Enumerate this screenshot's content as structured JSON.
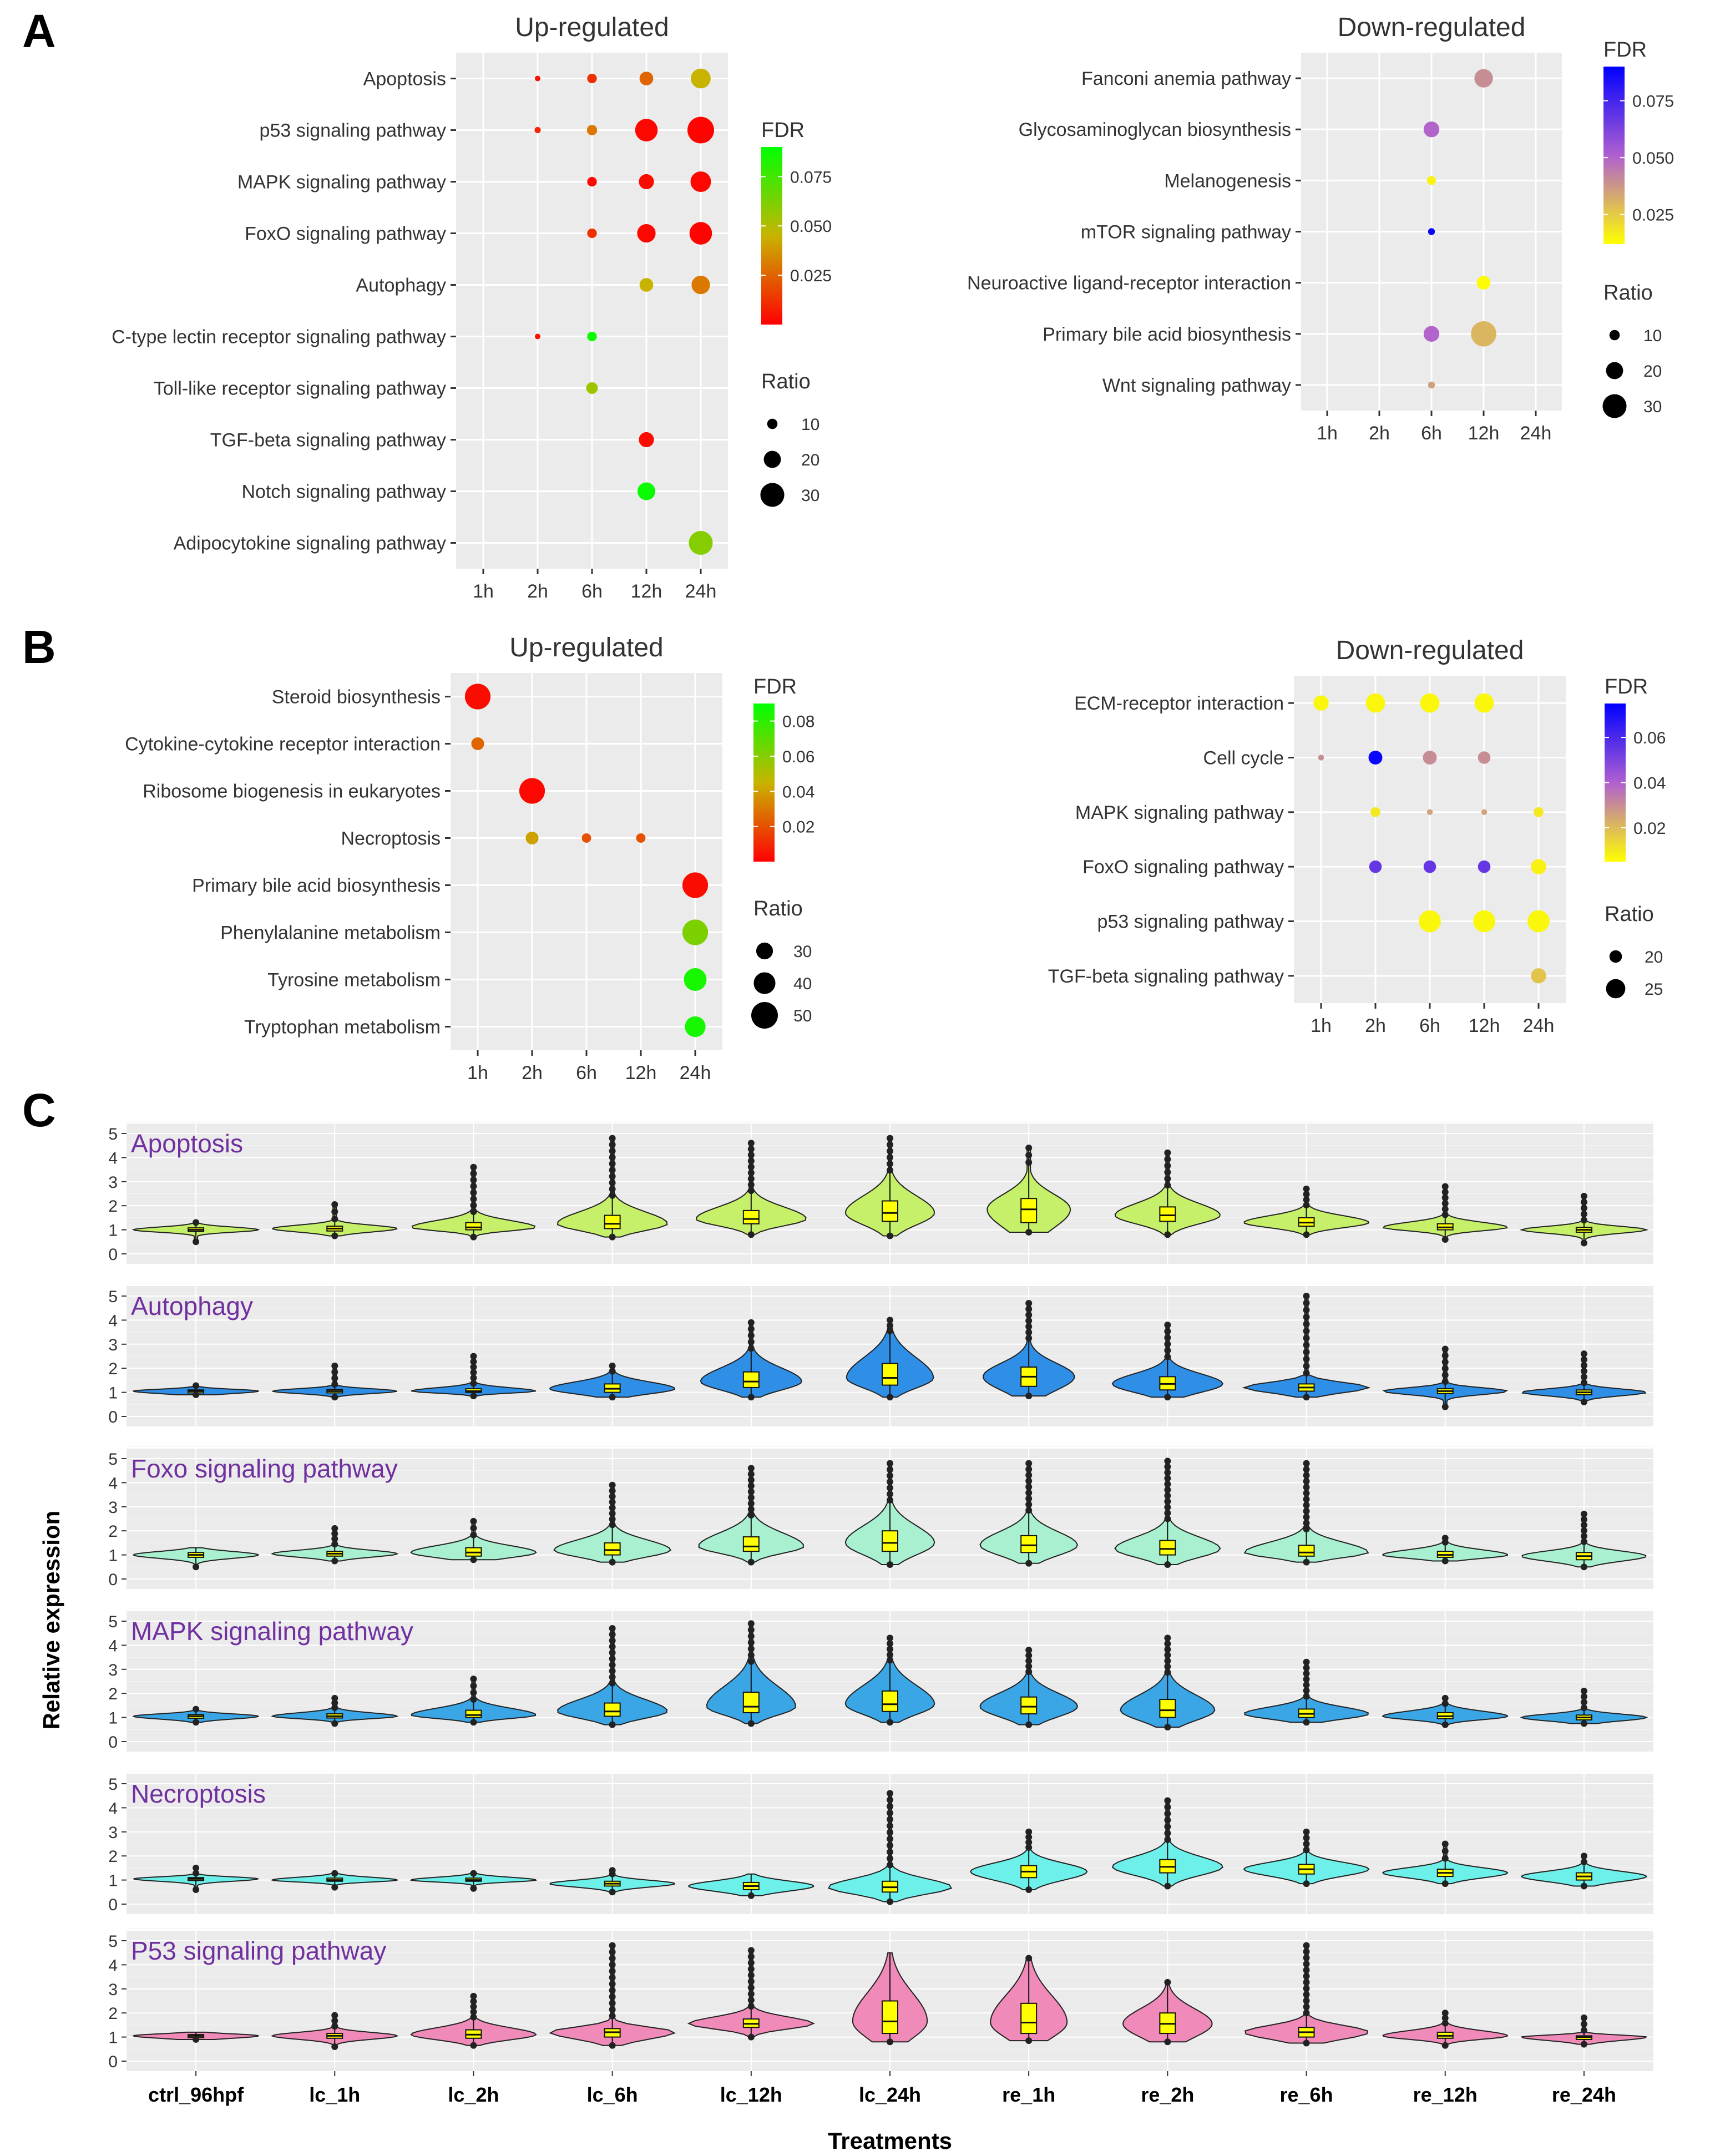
{
  "panel_labels": {
    "a": "A",
    "b": "B",
    "c": "C"
  },
  "colors": {
    "panel_bg": "#ebebeb",
    "grid": "#ffffff",
    "text": "#333333",
    "fdr_up_high": "#00ff00",
    "fdr_up_mid": "#c8b400",
    "fdr_up_low": "#ff0000",
    "fdr_down_high": "#0000ff",
    "fdr_down_mid": "#b060d0",
    "fdr_down_low": "#ffff00",
    "violin_apoptosis": "#c6ef6a",
    "violin_autophagy": "#2f8fe6",
    "violin_foxo": "#a8f0d0",
    "violin_mapk": "#3aa6e6",
    "violin_necroptosis": "#6ef0ea",
    "violin_p53": "#f08ab8",
    "box_fill": "#ffff00"
  },
  "chart_data": [
    {
      "id": "A-up",
      "type": "scatter",
      "title": "Up-regulated",
      "x_categories": [
        "1h",
        "2h",
        "6h",
        "12h",
        "24h"
      ],
      "y_categories": [
        "Apoptosis",
        "p53 signaling pathway",
        "MAPK signaling pathway",
        "FoxO signaling pathway",
        "Autophagy",
        "C-type lectin receptor signaling pathway",
        "Toll-like receptor signaling pathway",
        "TGF-beta signaling pathway",
        "Notch signaling pathway",
        "Adipocytokine signaling pathway"
      ],
      "color_legend": {
        "title": "FDR",
        "ticks": [
          "0.075",
          "0.050",
          "0.025"
        ],
        "tick_values": [
          0.075,
          0.05,
          0.025
        ],
        "range": [
          0.0,
          0.09
        ]
      },
      "size_legend": {
        "title": "Ratio",
        "ticks": [
          "10",
          "20",
          "30"
        ],
        "tick_values": [
          10,
          20,
          30
        ]
      },
      "points": [
        {
          "x": "2h",
          "y": "Apoptosis",
          "ratio": 3,
          "fdr": 0.004
        },
        {
          "x": "6h",
          "y": "Apoptosis",
          "ratio": 9,
          "fdr": 0.012
        },
        {
          "x": "12h",
          "y": "Apoptosis",
          "ratio": 15,
          "fdr": 0.025
        },
        {
          "x": "24h",
          "y": "Apoptosis",
          "ratio": 24,
          "fdr": 0.045
        },
        {
          "x": "2h",
          "y": "p53 signaling pathway",
          "ratio": 4,
          "fdr": 0.01
        },
        {
          "x": "6h",
          "y": "p53 signaling pathway",
          "ratio": 10,
          "fdr": 0.03
        },
        {
          "x": "12h",
          "y": "p53 signaling pathway",
          "ratio": 28,
          "fdr": 0.002
        },
        {
          "x": "24h",
          "y": "p53 signaling pathway",
          "ratio": 34,
          "fdr": 0.001
        },
        {
          "x": "6h",
          "y": "MAPK signaling pathway",
          "ratio": 9,
          "fdr": 0.003
        },
        {
          "x": "12h",
          "y": "MAPK signaling pathway",
          "ratio": 17,
          "fdr": 0.003
        },
        {
          "x": "24h",
          "y": "MAPK signaling pathway",
          "ratio": 25,
          "fdr": 0.002
        },
        {
          "x": "6h",
          "y": "FoxO signaling pathway",
          "ratio": 9,
          "fdr": 0.012
        },
        {
          "x": "12h",
          "y": "FoxO signaling pathway",
          "ratio": 22,
          "fdr": 0.002
        },
        {
          "x": "24h",
          "y": "FoxO signaling pathway",
          "ratio": 28,
          "fdr": 0.001
        },
        {
          "x": "12h",
          "y": "Autophagy",
          "ratio": 15,
          "fdr": 0.045
        },
        {
          "x": "24h",
          "y": "Autophagy",
          "ratio": 22,
          "fdr": 0.03
        },
        {
          "x": "2h",
          "y": "C-type lectin receptor signaling pathway",
          "ratio": 3,
          "fdr": 0.004
        },
        {
          "x": "6h",
          "y": "C-type lectin receptor signaling pathway",
          "ratio": 9,
          "fdr": 0.088
        },
        {
          "x": "6h",
          "y": "Toll-like receptor signaling pathway",
          "ratio": 12,
          "fdr": 0.055
        },
        {
          "x": "12h",
          "y": "TGF-beta signaling pathway",
          "ratio": 17,
          "fdr": 0.003
        },
        {
          "x": "12h",
          "y": "Notch signaling pathway",
          "ratio": 21,
          "fdr": 0.088
        },
        {
          "x": "24h",
          "y": "Adipocytokine signaling pathway",
          "ratio": 30,
          "fdr": 0.06
        }
      ]
    },
    {
      "id": "A-down",
      "type": "scatter",
      "title": "Down-regulated",
      "x_categories": [
        "1h",
        "2h",
        "6h",
        "12h",
        "24h"
      ],
      "y_categories": [
        "Fanconi anemia pathway",
        "Glycosaminoglycan biosynthesis",
        "Melanogenesis",
        "mTOR signaling pathway",
        "Neuroactive ligand-receptor interaction",
        "Primary bile acid biosynthesis",
        "Wnt signaling pathway"
      ],
      "color_legend": {
        "title": "FDR",
        "ticks": [
          "0.075",
          "0.050",
          "0.025"
        ],
        "tick_values": [
          0.075,
          0.05,
          0.025
        ],
        "range": [
          0.012,
          0.09
        ]
      },
      "size_legend": {
        "title": "Ratio",
        "ticks": [
          "10",
          "20",
          "30"
        ],
        "tick_values": [
          10,
          20,
          30
        ]
      },
      "points": [
        {
          "x": "12h",
          "y": "Fanconi anemia pathway",
          "ratio": 22,
          "fdr": 0.04
        },
        {
          "x": "6h",
          "y": "Glycosaminoglycan biosynthesis",
          "ratio": 18,
          "fdr": 0.05
        },
        {
          "x": "6h",
          "y": "Melanogenesis",
          "ratio": 8,
          "fdr": 0.015
        },
        {
          "x": "6h",
          "y": "mTOR signaling pathway",
          "ratio": 5,
          "fdr": 0.088
        },
        {
          "x": "12h",
          "y": "Neuroactive ligand-receptor interaction",
          "ratio": 15,
          "fdr": 0.013
        },
        {
          "x": "6h",
          "y": "Primary bile acid biosynthesis",
          "ratio": 18,
          "fdr": 0.05
        },
        {
          "x": "12h",
          "y": "Primary bile acid biosynthesis",
          "ratio": 32,
          "fdr": 0.03
        },
        {
          "x": "6h",
          "y": "Wnt signaling pathway",
          "ratio": 5,
          "fdr": 0.035
        }
      ]
    },
    {
      "id": "B-up",
      "type": "scatter",
      "title": "Up-regulated",
      "x_categories": [
        "1h",
        "2h",
        "6h",
        "12h",
        "24h"
      ],
      "y_categories": [
        "Steroid biosynthesis",
        "Cytokine-cytokine receptor interaction",
        "Ribosome biogenesis in eukaryotes",
        "Necroptosis",
        "Primary bile acid biosynthesis",
        "Phenylalanine metabolism",
        "Tyrosine metabolism",
        "Tryptophan metabolism"
      ],
      "color_legend": {
        "title": "FDR",
        "ticks": [
          "0.08",
          "0.06",
          "0.04",
          "0.02"
        ],
        "tick_values": [
          0.08,
          0.06,
          0.04,
          0.02
        ],
        "range": [
          0.0,
          0.09
        ]
      },
      "size_legend": {
        "title": "Ratio",
        "ticks": [
          "30",
          "40",
          "50"
        ],
        "tick_values": [
          30,
          40,
          50
        ]
      },
      "points": [
        {
          "x": "1h",
          "y": "Steroid biosynthesis",
          "ratio": 48,
          "fdr": 0.003
        },
        {
          "x": "1h",
          "y": "Cytokine-cytokine receptor interaction",
          "ratio": 22,
          "fdr": 0.025
        },
        {
          "x": "2h",
          "y": "Ribosome biogenesis in eukaryotes",
          "ratio": 48,
          "fdr": 0.002
        },
        {
          "x": "2h",
          "y": "Necroptosis",
          "ratio": 22,
          "fdr": 0.04
        },
        {
          "x": "6h",
          "y": "Necroptosis",
          "ratio": 15,
          "fdr": 0.02
        },
        {
          "x": "12h",
          "y": "Necroptosis",
          "ratio": 15,
          "fdr": 0.02
        },
        {
          "x": "24h",
          "y": "Primary bile acid biosynthesis",
          "ratio": 48,
          "fdr": 0.003
        },
        {
          "x": "24h",
          "y": "Phenylalanine metabolism",
          "ratio": 48,
          "fdr": 0.062
        },
        {
          "x": "24h",
          "y": "Tyrosine metabolism",
          "ratio": 42,
          "fdr": 0.085
        },
        {
          "x": "24h",
          "y": "Tryptophan metabolism",
          "ratio": 38,
          "fdr": 0.085
        }
      ]
    },
    {
      "id": "B-down",
      "type": "scatter",
      "title": "Down-regulated",
      "x_categories": [
        "1h",
        "2h",
        "6h",
        "12h",
        "24h"
      ],
      "y_categories": [
        "ECM-receptor interaction",
        "Cell cycle",
        "MAPK signaling pathway",
        "FoxO signaling pathway",
        "p53 signaling pathway",
        "TGF-beta signaling pathway"
      ],
      "color_legend": {
        "title": "FDR",
        "ticks": [
          "0.06",
          "0.04",
          "0.02"
        ],
        "tick_values": [
          0.06,
          0.04,
          0.02
        ],
        "range": [
          0.005,
          0.075
        ]
      },
      "size_legend": {
        "title": "Ratio",
        "ticks": [
          "20",
          "25"
        ],
        "tick_values": [
          20,
          25
        ]
      },
      "points": [
        {
          "x": "1h",
          "y": "ECM-receptor interaction",
          "ratio": 22,
          "fdr": 0.007
        },
        {
          "x": "2h",
          "y": "ECM-receptor interaction",
          "ratio": 25,
          "fdr": 0.007
        },
        {
          "x": "6h",
          "y": "ECM-receptor interaction",
          "ratio": 25,
          "fdr": 0.007
        },
        {
          "x": "12h",
          "y": "ECM-receptor interaction",
          "ratio": 25,
          "fdr": 0.007
        },
        {
          "x": "1h",
          "y": "Cell cycle",
          "ratio": 15,
          "fdr": 0.03
        },
        {
          "x": "2h",
          "y": "Cell cycle",
          "ratio": 21,
          "fdr": 0.073
        },
        {
          "x": "6h",
          "y": "Cell cycle",
          "ratio": 21,
          "fdr": 0.03
        },
        {
          "x": "12h",
          "y": "Cell cycle",
          "ratio": 20,
          "fdr": 0.03
        },
        {
          "x": "2h",
          "y": "MAPK signaling pathway",
          "ratio": 18,
          "fdr": 0.01
        },
        {
          "x": "6h",
          "y": "MAPK signaling pathway",
          "ratio": 15,
          "fdr": 0.025
        },
        {
          "x": "12h",
          "y": "MAPK signaling pathway",
          "ratio": 15,
          "fdr": 0.025
        },
        {
          "x": "24h",
          "y": "MAPK signaling pathway",
          "ratio": 18,
          "fdr": 0.01
        },
        {
          "x": "2h",
          "y": "FoxO signaling pathway",
          "ratio": 20,
          "fdr": 0.055
        },
        {
          "x": "6h",
          "y": "FoxO signaling pathway",
          "ratio": 20,
          "fdr": 0.055
        },
        {
          "x": "12h",
          "y": "FoxO signaling pathway",
          "ratio": 20,
          "fdr": 0.055
        },
        {
          "x": "24h",
          "y": "FoxO signaling pathway",
          "ratio": 22,
          "fdr": 0.008
        },
        {
          "x": "6h",
          "y": "p53 signaling pathway",
          "ratio": 27,
          "fdr": 0.007
        },
        {
          "x": "12h",
          "y": "p53 signaling pathway",
          "ratio": 27,
          "fdr": 0.007
        },
        {
          "x": "24h",
          "y": "p53 signaling pathway",
          "ratio": 27,
          "fdr": 0.007
        },
        {
          "x": "24h",
          "y": "TGF-beta signaling pathway",
          "ratio": 22,
          "fdr": 0.018
        }
      ]
    },
    {
      "id": "C",
      "type": "violin",
      "xlabel": "Treatments",
      "ylabel": "Relative expression",
      "ylim": [
        0,
        5
      ],
      "y_ticks": [
        "0",
        "1",
        "2",
        "3",
        "4",
        "5"
      ],
      "categories": [
        "ctrl_96hpf",
        "lc_1h",
        "lc_2h",
        "lc_6h",
        "lc_12h",
        "lc_24h",
        "re_1h",
        "re_2h",
        "re_6h",
        "re_12h",
        "re_24h"
      ],
      "series": [
        {
          "name": "Apoptosis",
          "median": [
            1.0,
            1.05,
            1.1,
            1.25,
            1.45,
            1.7,
            1.85,
            1.6,
            1.3,
            1.1,
            1.0
          ],
          "q1": [
            0.93,
            0.95,
            1.0,
            1.05,
            1.25,
            1.35,
            1.3,
            1.35,
            1.15,
            1.0,
            0.9
          ],
          "q3": [
            1.08,
            1.15,
            1.3,
            1.6,
            1.8,
            2.2,
            2.3,
            1.95,
            1.5,
            1.25,
            1.1
          ],
          "max": [
            1.35,
            2.05,
            3.6,
            4.8,
            4.6,
            4.8,
            4.4,
            4.2,
            2.7,
            2.8,
            2.4
          ],
          "min": [
            0.5,
            0.75,
            0.7,
            0.7,
            0.8,
            0.75,
            0.9,
            0.8,
            0.8,
            0.6,
            0.45
          ]
        },
        {
          "name": "Autophagy",
          "median": [
            1.05,
            1.05,
            1.05,
            1.15,
            1.45,
            1.6,
            1.65,
            1.35,
            1.2,
            1.05,
            1.0
          ],
          "q1": [
            0.98,
            0.98,
            1.0,
            1.0,
            1.2,
            1.3,
            1.25,
            1.1,
            1.05,
            0.95,
            0.9
          ],
          "q3": [
            1.1,
            1.12,
            1.15,
            1.35,
            1.85,
            2.2,
            2.05,
            1.65,
            1.35,
            1.15,
            1.1
          ],
          "max": [
            1.35,
            2.1,
            2.5,
            2.1,
            3.9,
            4.0,
            4.7,
            3.8,
            5.0,
            2.8,
            2.6
          ],
          "min": [
            0.9,
            0.8,
            0.85,
            0.8,
            0.8,
            0.8,
            0.85,
            0.8,
            0.8,
            0.4,
            0.6
          ]
        },
        {
          "name": "Foxo signaling pathway",
          "median": [
            1.0,
            1.05,
            1.1,
            1.2,
            1.35,
            1.5,
            1.4,
            1.25,
            1.1,
            1.0,
            0.95
          ],
          "q1": [
            0.9,
            0.95,
            0.95,
            1.0,
            1.15,
            1.15,
            1.1,
            1.0,
            0.95,
            0.9,
            0.8
          ],
          "q3": [
            1.1,
            1.15,
            1.3,
            1.5,
            1.75,
            2.0,
            1.8,
            1.6,
            1.4,
            1.15,
            1.1
          ],
          "max": [
            1.3,
            2.1,
            2.4,
            3.9,
            4.6,
            4.8,
            4.8,
            4.9,
            4.8,
            1.7,
            2.7
          ],
          "min": [
            0.5,
            0.75,
            0.8,
            0.7,
            0.7,
            0.6,
            0.65,
            0.6,
            0.7,
            0.75,
            0.5
          ]
        },
        {
          "name": "MAPK signaling pathway",
          "median": [
            1.05,
            1.05,
            1.1,
            1.25,
            1.45,
            1.55,
            1.45,
            1.3,
            1.15,
            1.05,
            1.0
          ],
          "q1": [
            0.97,
            0.98,
            1.0,
            1.05,
            1.2,
            1.25,
            1.15,
            1.0,
            1.0,
            0.95,
            0.9
          ],
          "q3": [
            1.12,
            1.15,
            1.3,
            1.6,
            2.05,
            2.1,
            1.85,
            1.75,
            1.35,
            1.2,
            1.1
          ],
          "max": [
            1.4,
            1.8,
            2.6,
            4.7,
            4.9,
            4.3,
            3.8,
            4.3,
            3.3,
            1.8,
            2.1
          ],
          "min": [
            0.8,
            0.75,
            0.8,
            0.7,
            0.75,
            0.8,
            0.7,
            0.6,
            0.8,
            0.7,
            0.75
          ]
        },
        {
          "name": "Necroptosis",
          "median": [
            1.05,
            1.0,
            1.0,
            0.85,
            0.75,
            0.7,
            1.35,
            1.55,
            1.45,
            1.3,
            1.15
          ],
          "q1": [
            0.98,
            0.95,
            0.95,
            0.75,
            0.6,
            0.5,
            1.1,
            1.3,
            1.25,
            1.15,
            1.0
          ],
          "q3": [
            1.1,
            1.08,
            1.08,
            0.95,
            0.9,
            0.95,
            1.6,
            1.85,
            1.65,
            1.45,
            1.3
          ],
          "max": [
            1.5,
            1.3,
            1.3,
            1.4,
            1.25,
            4.6,
            3.0,
            4.3,
            3.0,
            2.5,
            2.0
          ],
          "min": [
            0.6,
            0.7,
            0.65,
            0.5,
            0.35,
            0.1,
            0.6,
            0.75,
            0.85,
            0.85,
            0.75
          ]
        },
        {
          "name": "P53 signaling pathway",
          "median": [
            1.05,
            1.05,
            1.1,
            1.2,
            1.55,
            1.65,
            1.6,
            1.55,
            1.2,
            1.05,
            1.0
          ],
          "q1": [
            0.98,
            0.95,
            0.95,
            1.0,
            1.4,
            1.15,
            1.15,
            1.15,
            1.0,
            0.95,
            0.9
          ],
          "q3": [
            1.1,
            1.15,
            1.3,
            1.35,
            1.75,
            2.5,
            2.4,
            2.0,
            1.4,
            1.2,
            1.05
          ],
          "max": [
            1.2,
            1.9,
            2.7,
            4.8,
            4.6,
            4.5,
            4.3,
            3.3,
            4.8,
            2.0,
            1.8
          ],
          "min": [
            0.9,
            0.6,
            0.65,
            0.65,
            1.0,
            0.8,
            0.85,
            0.8,
            0.75,
            0.65,
            0.7
          ]
        }
      ]
    }
  ]
}
